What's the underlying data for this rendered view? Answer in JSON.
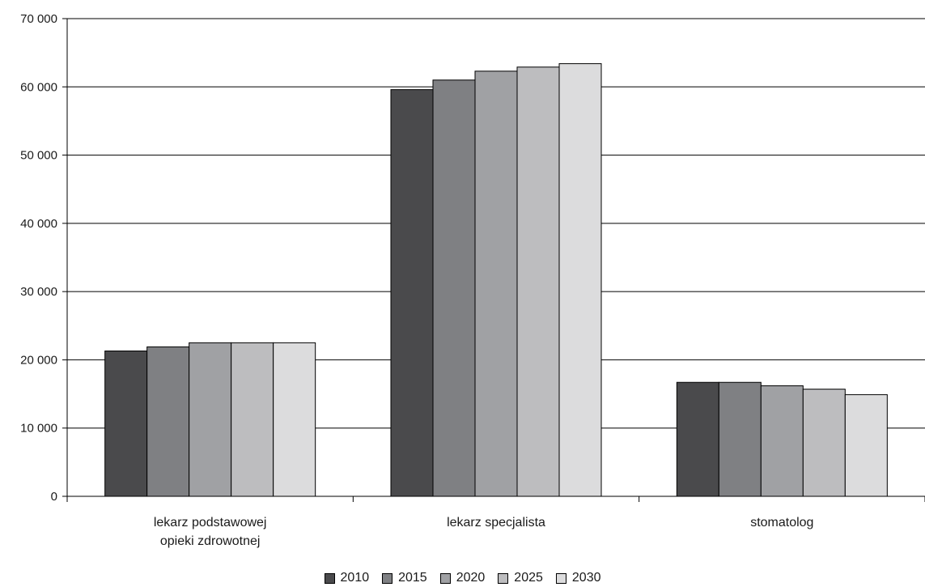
{
  "chart_data": {
    "type": "bar",
    "title": "",
    "xlabel": "",
    "ylabel": "",
    "categories": [
      [
        "lekarz podstawowej",
        "opieki zdrowotnej"
      ],
      [
        "lekarz specjalista"
      ],
      [
        "stomatolog"
      ]
    ],
    "series": [
      {
        "name": "2010",
        "color": "#4a4a4c",
        "values": [
          21300,
          59600,
          16700
        ]
      },
      {
        "name": "2015",
        "color": "#7f8083",
        "values": [
          21900,
          61000,
          16700
        ]
      },
      {
        "name": "2020",
        "color": "#a0a1a4",
        "values": [
          22500,
          62300,
          16200
        ]
      },
      {
        "name": "2025",
        "color": "#bdbdbf",
        "values": [
          22500,
          62900,
          15700
        ]
      },
      {
        "name": "2030",
        "color": "#dcdcdd",
        "values": [
          22500,
          63400,
          14900
        ]
      }
    ],
    "ylim": [
      0,
      70000
    ],
    "yticks": [
      0,
      10000,
      20000,
      30000,
      40000,
      50000,
      60000,
      70000
    ],
    "ytick_labels": [
      "0",
      "10 000",
      "20 000",
      "30 000",
      "40 000",
      "50 000",
      "60 000",
      "70 000"
    ],
    "grid": true,
    "legend_position": "bottom"
  }
}
